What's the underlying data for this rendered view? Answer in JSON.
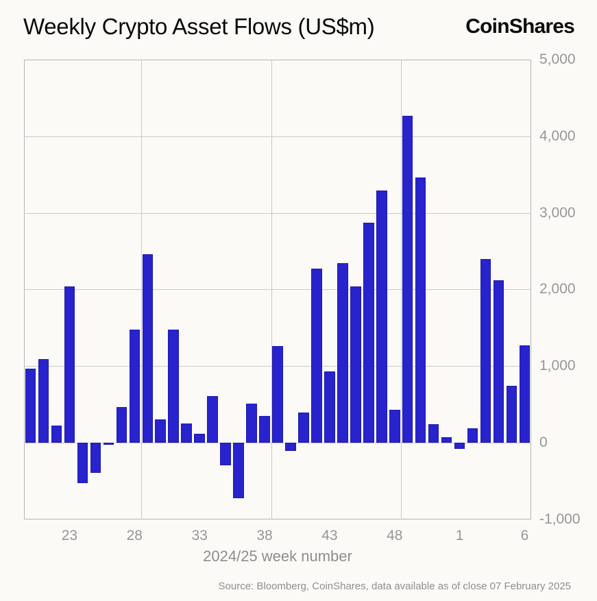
{
  "header": {
    "title": "Weekly Crypto Asset Flows (US$m)",
    "logo": "CoinShares"
  },
  "chart_data": {
    "type": "bar",
    "title": "Weekly Crypto Asset Flows (US$m)",
    "xlabel": "2024/25 week number",
    "ylabel": "",
    "ylim": [
      -1000,
      5000
    ],
    "grid": "on",
    "legend_position": "none",
    "bar_color": "#2823cd",
    "categories": [
      "20",
      "21",
      "22",
      "23",
      "24",
      "25",
      "26",
      "27",
      "28",
      "29",
      "30",
      "31",
      "32",
      "33",
      "34",
      "35",
      "36",
      "37",
      "38",
      "39",
      "40",
      "41",
      "42",
      "43",
      "44",
      "45",
      "46",
      "47",
      "48",
      "49",
      "50",
      "51",
      "52",
      "1",
      "2",
      "3",
      "4",
      "5",
      "6"
    ],
    "values": [
      960,
      1090,
      220,
      2040,
      -530,
      -400,
      -25,
      460,
      1470,
      2460,
      300,
      1470,
      250,
      110,
      610,
      -300,
      -730,
      510,
      350,
      1260,
      -110,
      390,
      2270,
      930,
      2340,
      2040,
      2870,
      3290,
      430,
      4270,
      3460,
      240,
      70,
      -80,
      190,
      2400,
      2120,
      740,
      1270
    ],
    "x_tick_labels": [
      "23",
      "28",
      "33",
      "38",
      "43",
      "48",
      "1",
      "6"
    ],
    "vertical_gridlines_after": [
      "28",
      "38",
      "48"
    ],
    "y_tick_labels": [
      "5,000",
      "4,000",
      "3,000",
      "2,000",
      "1,000",
      "0",
      "-1,000"
    ],
    "y_tick_values": [
      5000,
      4000,
      3000,
      2000,
      1000,
      0,
      -1000
    ]
  },
  "footer": {
    "source": "Source: Bloomberg, CoinShares, data available as of close 07 February 2025"
  }
}
